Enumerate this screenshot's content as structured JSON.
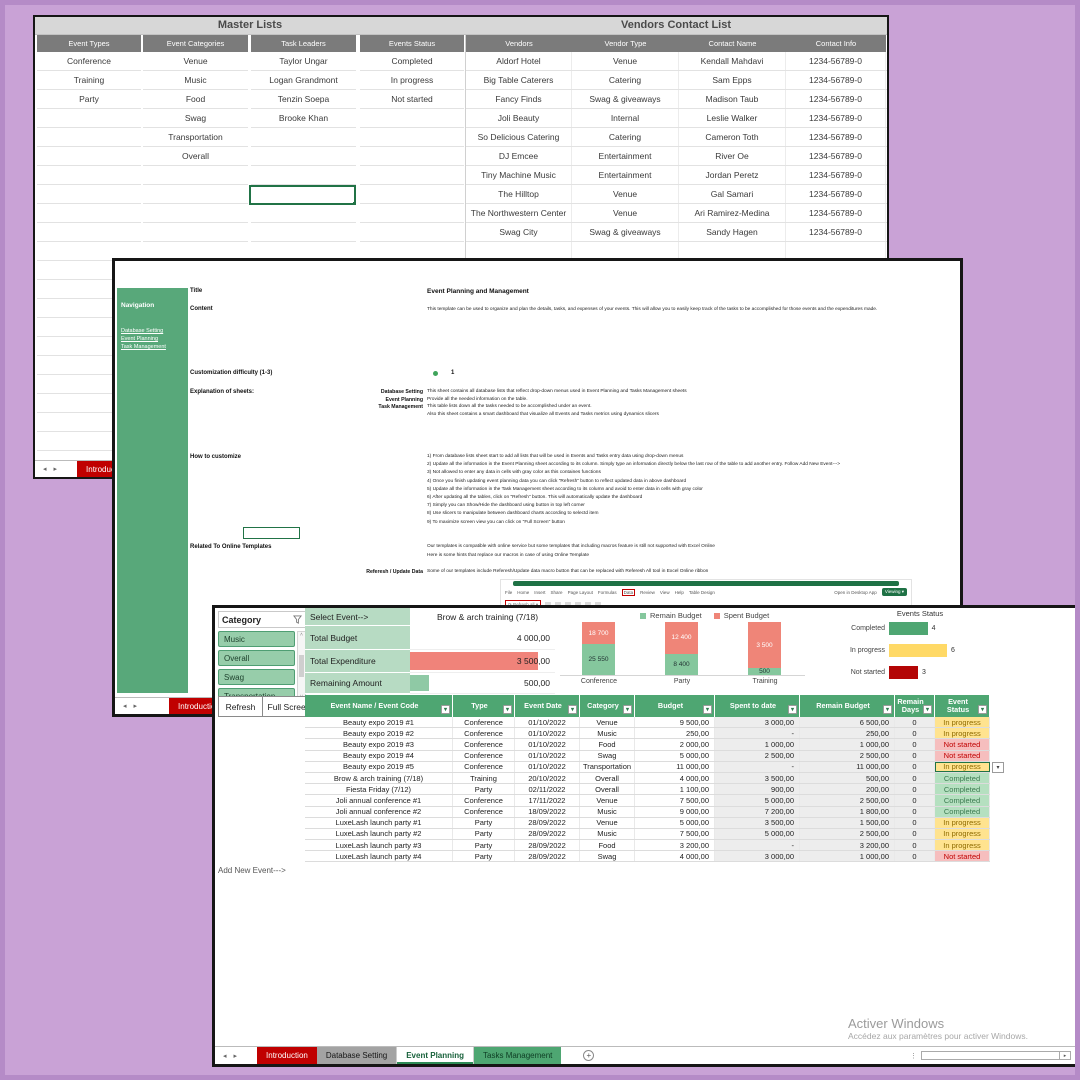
{
  "colors": {
    "remain_green": "#85c79d",
    "spent_red": "#ef8578",
    "bar_green": "#4ea672",
    "bar_yellow": "#ffd966",
    "bar_darkred": "#b30505",
    "summary_bar_red": "#f0837a",
    "summary_bar_green": "#8fc9a5"
  },
  "icons": {
    "prev": "◂",
    "next": "▸",
    "dropdown": "▾",
    "up": "˄",
    "down": "˅",
    "add_sheet": "+",
    "more": "⋮",
    "scroll_right": "▸",
    "refresh": "⟳"
  },
  "master_window": {
    "title": "Master Lists",
    "lists": [
      {
        "header": "Event Types",
        "items": [
          "Conference",
          "Training",
          "Party"
        ]
      },
      {
        "header": "Event Categories",
        "items": [
          "Venue",
          "Music",
          "Food",
          "Swag",
          "Transportation",
          "Overall"
        ]
      },
      {
        "header": "Task Leaders",
        "items": [
          "Taylor Ungar",
          "Logan Grandmont",
          "Tenzin Soepa",
          "Brooke Khan"
        ]
      },
      {
        "header": "Events Status",
        "items": [
          "Completed",
          "In progress",
          "Not started"
        ]
      }
    ],
    "vendors": {
      "title": "Vendors Contact List",
      "headers": [
        "Vendors",
        "Vendor Type",
        "Contact Name",
        "Contact Info"
      ],
      "rows": [
        [
          "Aldorf Hotel",
          "Venue",
          "Kendall Mahdavi",
          "1234-56789-0"
        ],
        [
          "Big Table Caterers",
          "Catering",
          "Sam Epps",
          "1234-56789-0"
        ],
        [
          "Fancy Finds",
          "Swag & giveaways",
          "Madison Taub",
          "1234-56789-0"
        ],
        [
          "Joli Beauty",
          "Internal",
          "Leslie Walker",
          "1234-56789-0"
        ],
        [
          "So Delicious Catering",
          "Catering",
          "Cameron Toth",
          "1234-56789-0"
        ],
        [
          "DJ Emcee",
          "Entertainment",
          "River Oe",
          "1234-56789-0"
        ],
        [
          "Tiny Machine Music",
          "Entertainment",
          "Jordan Peretz",
          "1234-56789-0"
        ],
        [
          "The Hilltop",
          "Venue",
          "Gal Samari",
          "1234-56789-0"
        ],
        [
          "The Northwestern Center",
          "Venue",
          "Ari Ramirez-Medina",
          "1234-56789-0"
        ],
        [
          "Swag City",
          "Swag & giveaways",
          "Sandy Hagen",
          "1234-56789-0"
        ]
      ]
    },
    "tab": "Introduction"
  },
  "intro_window": {
    "nav": {
      "title": "Navigation",
      "links": [
        "Database Setting",
        "Event Planning",
        "Task Management"
      ]
    },
    "title_label": "Title",
    "title_value": "Event Planning and Management",
    "content_label": "Content",
    "content_value": "This template can be used to organize and plan the details, tasks, and expenses of your events. This will allow you to easily keep track of the tasks to be accomplished for those events and the expenditures made.",
    "difficulty_label": "Customization difficulty (1-3)",
    "difficulty_value": "1",
    "explanation_label": "Explanation of sheets:",
    "explanation": [
      {
        "label": "Database Setting",
        "text": "This sheet contains all database lists that reflect drop-down menus used in Event Planning and Tasks Management sheets"
      },
      {
        "label": "Event Planning",
        "text": "Provide all the needed information on the table."
      },
      {
        "label": "Task Management",
        "text": "This table lists down all the tasks needed to be accomplished under an event."
      },
      {
        "label": "",
        "text": "Also this sheet contains a smart dashboard that visualize all Events and Tasks metrics using dynamics slicers"
      }
    ],
    "how_label": "How to customize",
    "steps": [
      "1) From database lists sheet start to add all lists that will be used in Events and Tasks entry data using drop-down menus",
      "2) Update all the information in the Event Planning sheet according to its column. Simply type an information directly below the last row of the table to add another entry. Follow Add New Event--->",
      "3) Not allowed to enter any data in cells with gray color as this containes functions",
      "4) Once you finish updating event planning data you can click \"Refresh\" button to reflect updated data in above dashboard",
      "5) Update all the information in the Task Management sheet according to its column and avoid to enter data in cells with gray color",
      "6) After updating all the tables, click on \"Refresh\" button. This will automatically update the dashboard",
      "7) Simply you can Show/Hide the dashboard using button in top left corner",
      "8) Use slicers to manipulate between dashboard charts according to selectd item",
      "9) To maximize screen view you can click on \"Full Screen\" button"
    ],
    "related_label": "Related To Online Templates",
    "related": [
      "Our templates is compatible with online service but some templates that including macros feature is still not supported with Excel Online",
      "Here is some hints that replace our macros in case of using Online Template"
    ],
    "refresh_label": "Referesh / Update Data",
    "refresh_text": "Some of our templates include Referesh/Update data macro button that can be replaced with Referesh All tool in Excel Online ribbon",
    "ribbon": {
      "tabs": [
        "File",
        "Home",
        "Insert",
        "Share",
        "Page Layout",
        "Formulas",
        "Data",
        "Review",
        "View",
        "Help",
        "Table Design"
      ],
      "highlighted_tab": "Data",
      "open_desktop": "Open in Desktop App",
      "mode": "Viewing",
      "tool": "Refresh all"
    },
    "tab": "Introduction"
  },
  "planning_window": {
    "slicer": {
      "title": "Category",
      "items": [
        "Music",
        "Overall",
        "Swag",
        "Transportation"
      ]
    },
    "buttons": {
      "refresh": "Refresh",
      "full_screen": "Full Screen"
    },
    "summary": {
      "select_label": "Select Event-->",
      "event_name": "Brow & arch training (7/18)",
      "rows": [
        {
          "label": "Total Budget",
          "value": "4 000,00",
          "bar": "none",
          "bar_pct": 0
        },
        {
          "label": "Total Expenditure",
          "value": "3 500,00",
          "bar": "red",
          "bar_pct": 88
        },
        {
          "label": "Remaining Amount",
          "value": "500,00",
          "bar": "green",
          "bar_pct": 13
        }
      ]
    },
    "table": {
      "headers": [
        "Event Name / Event Code",
        "Type",
        "Event Date",
        "Category",
        "Budget",
        "Spent to date",
        "Remain Budget",
        "Remain Days",
        "Event Status"
      ],
      "rows": [
        [
          "Beauty expo 2019 #1",
          "Conference",
          "01/10/2022",
          "Venue",
          "9 500,00",
          "3 000,00",
          "6 500,00",
          "0",
          "In progress"
        ],
        [
          "Beauty expo 2019 #2",
          "Conference",
          "01/10/2022",
          "Music",
          "250,00",
          "-",
          "250,00",
          "0",
          "In progress"
        ],
        [
          "Beauty expo 2019 #3",
          "Conference",
          "01/10/2022",
          "Food",
          "2 000,00",
          "1 000,00",
          "1 000,00",
          "0",
          "Not started"
        ],
        [
          "Beauty expo 2019 #4",
          "Conference",
          "01/10/2022",
          "Swag",
          "5 000,00",
          "2 500,00",
          "2 500,00",
          "0",
          "Not started"
        ],
        [
          "Beauty expo 2019 #5",
          "Conference",
          "01/10/2022",
          "Transportation",
          "11 000,00",
          "-",
          "11 000,00",
          "0",
          "In progress"
        ],
        [
          "Brow & arch training (7/18)",
          "Training",
          "20/10/2022",
          "Overall",
          "4 000,00",
          "3 500,00",
          "500,00",
          "0",
          "Completed"
        ],
        [
          "Fiesta Friday (7/12)",
          "Party",
          "02/11/2022",
          "Overall",
          "1 100,00",
          "900,00",
          "200,00",
          "0",
          "Completed"
        ],
        [
          "Joli annual conference #1",
          "Conference",
          "17/11/2022",
          "Venue",
          "7 500,00",
          "5 000,00",
          "2 500,00",
          "0",
          "Completed"
        ],
        [
          "Joli annual conference #2",
          "Conference",
          "18/09/2022",
          "Music",
          "9 000,00",
          "7 200,00",
          "1 800,00",
          "0",
          "Completed"
        ],
        [
          "LuxeLash launch party #1",
          "Party",
          "28/09/2022",
          "Venue",
          "5 000,00",
          "3 500,00",
          "1 500,00",
          "0",
          "In progress"
        ],
        [
          "LuxeLash launch party #2",
          "Party",
          "28/09/2022",
          "Music",
          "7 500,00",
          "5 000,00",
          "2 500,00",
          "0",
          "In progress"
        ],
        [
          "LuxeLash launch party #3",
          "Party",
          "28/09/2022",
          "Food",
          "3 200,00",
          "-",
          "3 200,00",
          "0",
          "In progress"
        ],
        [
          "LuxeLash launch party #4",
          "Party",
          "28/09/2022",
          "Swag",
          "4 000,00",
          "3 000,00",
          "1 000,00",
          "0",
          "Not started"
        ]
      ],
      "selected_row": 4,
      "gray_columns": [
        5,
        6,
        7
      ]
    },
    "add_new": "Add New Event--->",
    "tabs": [
      {
        "label": "Introduction",
        "style": "red"
      },
      {
        "label": "Database Setting",
        "style": "gray"
      },
      {
        "label": "Event Planning",
        "style": "active"
      },
      {
        "label": "Tasks Management",
        "style": "green"
      }
    ]
  },
  "watermark": {
    "line1": "Activer Windows",
    "line2": "Accédez aux paramètres pour activer Windows."
  },
  "chart_data": [
    {
      "type": "bar",
      "subtype": "stacked-100",
      "title": "",
      "categories": [
        "Conference",
        "Party",
        "Training"
      ],
      "series": [
        {
          "name": "Remain Budget",
          "color": "#85c79d",
          "values": [
            25550,
            8400,
            500
          ],
          "labels": [
            "25 550",
            "8 400",
            "500"
          ]
        },
        {
          "name": "Spent Budget",
          "color": "#ef8578",
          "values": [
            18700,
            12400,
            3500
          ],
          "labels": [
            "18 700",
            "12 400",
            "3 500"
          ]
        }
      ],
      "legend_position": "top"
    },
    {
      "type": "bar",
      "orientation": "horizontal",
      "title": "Events Status",
      "categories": [
        "Completed",
        "In progress",
        "Not started"
      ],
      "values": [
        4,
        6,
        3
      ],
      "colors": [
        "#4ea672",
        "#ffd966",
        "#b30505"
      ],
      "xlim": [
        0,
        6
      ]
    }
  ]
}
